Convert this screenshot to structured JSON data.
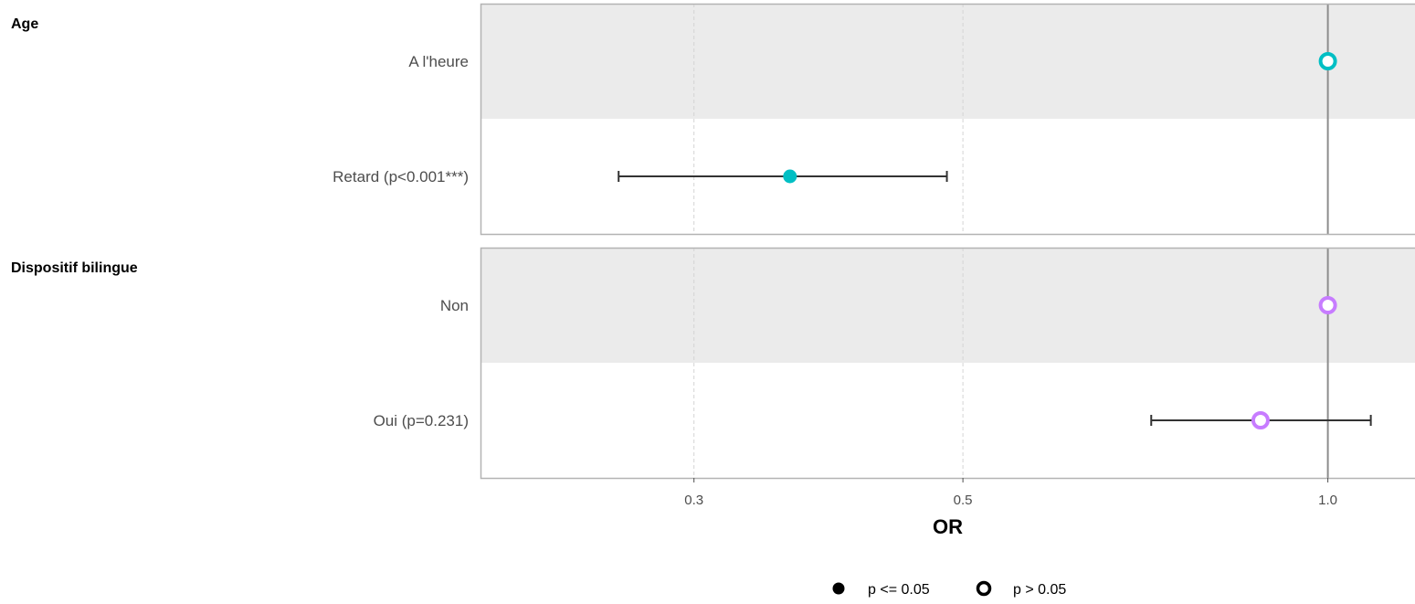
{
  "chart_data": {
    "type": "scatter",
    "subtype": "forest-plot",
    "xlabel": "OR",
    "x_scale": "log",
    "xlim": [
      0.2,
      1.18
    ],
    "x_ticks": [
      {
        "value": 0.3,
        "label": "0.3"
      },
      {
        "value": 0.5,
        "label": "0.5"
      },
      {
        "value": 1.0,
        "label": "1.0"
      }
    ],
    "reference_line": 1.0,
    "groups": [
      {
        "name": "Age",
        "color": "#00BFC4",
        "rows": [
          {
            "label": "A l'heure",
            "or": 1.0,
            "ci_low": null,
            "ci_high": null,
            "significant": false,
            "shaded": true
          },
          {
            "label": "Retard (p<0.001***)",
            "or": 0.36,
            "ci_low": 0.26,
            "ci_high": 0.485,
            "significant": true,
            "shaded": false
          }
        ]
      },
      {
        "name": "Dispositif bilingue",
        "color": "#C77CFF",
        "rows": [
          {
            "label": "Non",
            "or": 1.0,
            "ci_low": null,
            "ci_high": null,
            "significant": false,
            "shaded": true
          },
          {
            "label": "Oui (p=0.231)",
            "or": 0.88,
            "ci_low": 0.715,
            "ci_high": 1.085,
            "significant": false,
            "shaded": false
          }
        ]
      }
    ],
    "legend": {
      "placement": "bottom",
      "items": [
        {
          "label": "p <= 0.05",
          "filled": true
        },
        {
          "label": "p > 0.05",
          "filled": false
        }
      ]
    }
  }
}
